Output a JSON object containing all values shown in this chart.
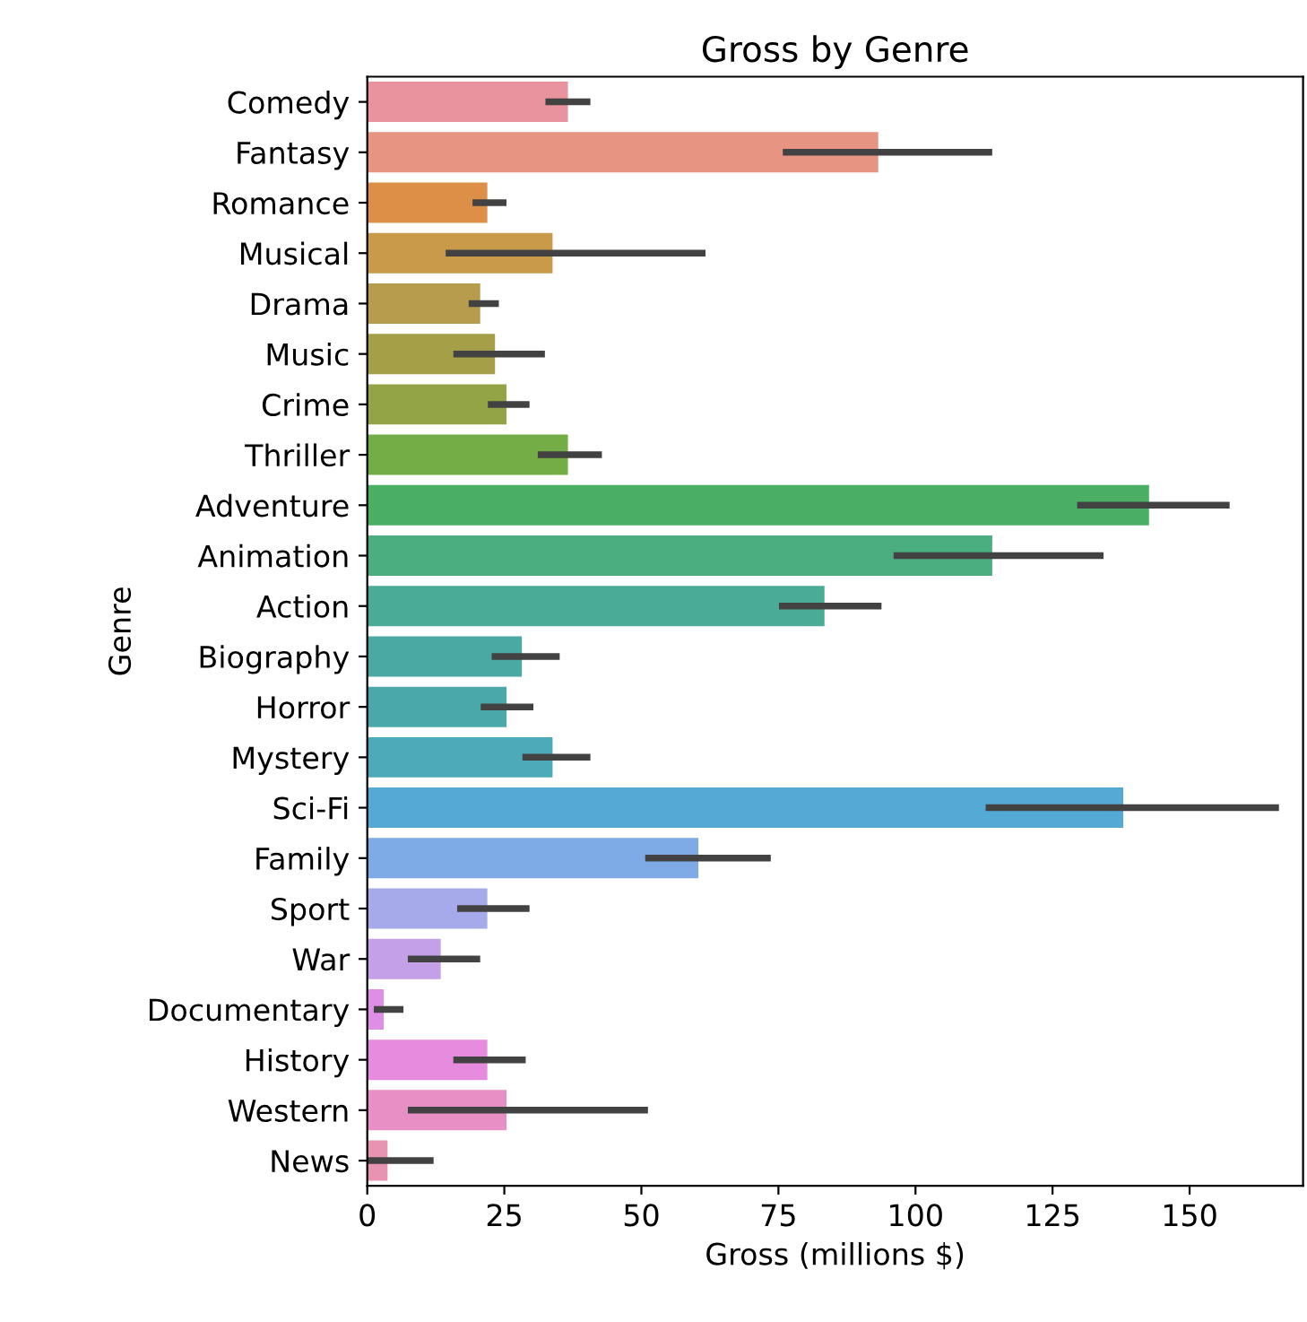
{
  "chart_data": {
    "type": "bar",
    "orientation": "horizontal",
    "title": "Gross by Genre",
    "xlabel": "Gross (millions $)",
    "ylabel": "Genre",
    "categories": [
      "Comedy",
      "Fantasy",
      "Romance",
      "Musical",
      "Drama",
      "Music",
      "Crime",
      "Thriller",
      "Adventure",
      "Animation",
      "Action",
      "Biography",
      "Horror",
      "Mystery",
      "Sci-Fi",
      "Family",
      "Sport",
      "War",
      "Documentary",
      "History",
      "Western",
      "News"
    ],
    "values": [
      36.6,
      93.2,
      21.9,
      33.8,
      20.6,
      23.3,
      25.4,
      36.6,
      142.6,
      114.0,
      83.4,
      28.2,
      25.4,
      33.8,
      137.9,
      60.4,
      21.9,
      13.4,
      3.0,
      21.9,
      25.4,
      3.7
    ],
    "errors": [
      [
        32.5,
        40.7
      ],
      [
        75.8,
        114.0
      ],
      [
        19.2,
        25.4
      ],
      [
        14.3,
        61.7
      ],
      [
        18.5,
        24.0
      ],
      [
        15.7,
        32.4
      ],
      [
        22.0,
        29.6
      ],
      [
        31.1,
        42.8
      ],
      [
        129.5,
        157.3
      ],
      [
        96.0,
        134.3
      ],
      [
        75.1,
        93.8
      ],
      [
        22.7,
        35.1
      ],
      [
        20.7,
        30.3
      ],
      [
        28.3,
        40.7
      ],
      [
        112.8,
        166.3
      ],
      [
        50.7,
        73.6
      ],
      [
        16.4,
        29.6
      ],
      [
        7.4,
        20.6
      ],
      [
        1.2,
        6.6
      ],
      [
        15.7,
        28.9
      ],
      [
        7.4,
        51.2
      ],
      [
        0,
        12.1
      ]
    ],
    "colors": [
      "#e8939e",
      "#e89482",
      "#dd8f48",
      "#c89a4a",
      "#b69c4c",
      "#a59f47",
      "#93a446",
      "#74ac45",
      "#4aaf64",
      "#4aae80",
      "#4aab97",
      "#4aaaa3",
      "#4aa8aa",
      "#4caab9",
      "#54aad4",
      "#7eabe5",
      "#a6a9ea",
      "#c3a0e8",
      "#de8fe5",
      "#e68bde",
      "#e88fc6",
      "#e893b2"
    ],
    "xlim": [
      0,
      170.7
    ],
    "xticks": [
      0,
      25,
      50,
      75,
      100,
      125,
      150
    ],
    "grid": false,
    "legend": false
  }
}
